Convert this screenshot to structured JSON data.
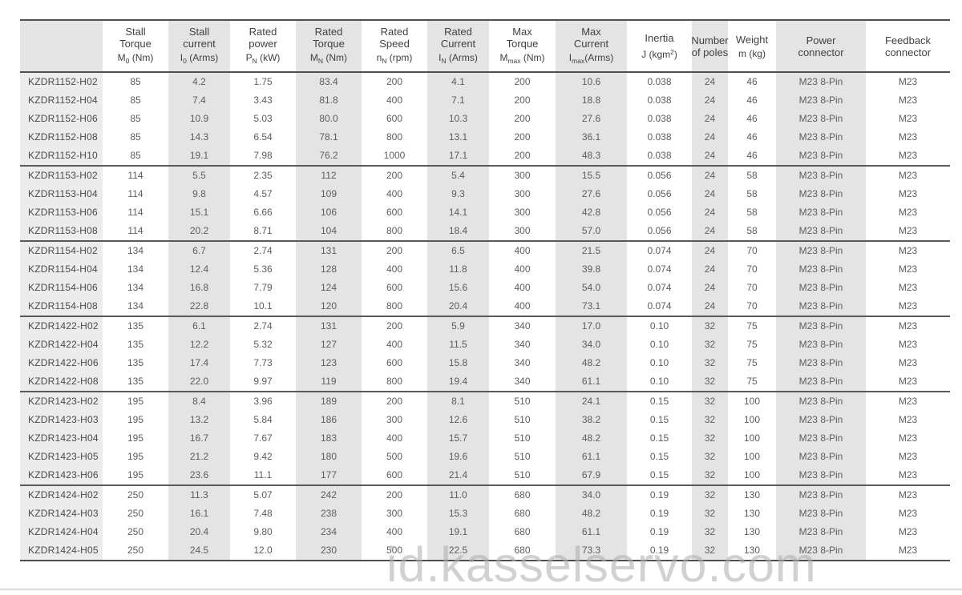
{
  "colors": {
    "page_bg": "#ffffff",
    "stripe": "#e4e4e4",
    "model_col": "#ececec",
    "border_dark": "#4f4f4f",
    "border_group": "#5a5a5a",
    "header_text": "#414141",
    "body_text": "#5d5d5d",
    "model_text": "#4a4a4a",
    "watermark": "#b0b0b0",
    "footer_line": "#dcdcdc"
  },
  "watermark": {
    "text": "id.kasselservo.com"
  },
  "table": {
    "columns": [
      {
        "key": "model",
        "label": "",
        "unit": null,
        "shaded": false,
        "header_shaded": true,
        "width": 103
      },
      {
        "key": "stall-torque",
        "label": "Stall\nTorque",
        "unit": [
          [
            "M",
            "n"
          ],
          [
            "0",
            "sub"
          ],
          [
            " (Nm)",
            "n"
          ]
        ],
        "shaded": false,
        "width": 82
      },
      {
        "key": "stall-current",
        "label": "Stall\ncurrent",
        "unit": [
          [
            "I",
            "n"
          ],
          [
            "0",
            "sub"
          ],
          [
            " (Arms)",
            "n"
          ]
        ],
        "shaded": true,
        "width": 77
      },
      {
        "key": "rated-power",
        "label": "Rated\npower",
        "unit": [
          [
            "P",
            "n"
          ],
          [
            "N",
            "sub"
          ],
          [
            " (kW)",
            "n"
          ]
        ],
        "shaded": false,
        "width": 82
      },
      {
        "key": "rated-torque",
        "label": "Rated\nTorque",
        "unit": [
          [
            "M",
            "n"
          ],
          [
            "N",
            "sub"
          ],
          [
            " (Nm)",
            "n"
          ]
        ],
        "shaded": true,
        "width": 82
      },
      {
        "key": "rated-speed",
        "label": "Rated\nSpeed",
        "unit": [
          [
            "n",
            "n"
          ],
          [
            "N",
            "sub"
          ],
          [
            " (rpm)",
            "n"
          ]
        ],
        "shaded": false,
        "width": 82
      },
      {
        "key": "rated-current",
        "label": "Rated\nCurrent",
        "unit": [
          [
            "I",
            "n"
          ],
          [
            "N",
            "sub"
          ],
          [
            " (Arms)",
            "n"
          ]
        ],
        "shaded": true,
        "width": 77
      },
      {
        "key": "max-torque",
        "label": "Max\nTorque",
        "unit": [
          [
            "M",
            "n"
          ],
          [
            "max",
            "sub"
          ],
          [
            " (Nm)",
            "n"
          ]
        ],
        "shaded": false,
        "width": 83
      },
      {
        "key": "max-current",
        "label": "Max\nCurrent",
        "unit": [
          [
            "I",
            "n"
          ],
          [
            "max",
            "sub"
          ],
          [
            "(Arms)",
            "n"
          ]
        ],
        "shaded": true,
        "width": 89
      },
      {
        "key": "inertia",
        "label": "Inertia",
        "unit": [
          [
            "J (kgm",
            "n"
          ],
          [
            "2",
            "sup"
          ],
          [
            ")",
            "n"
          ]
        ],
        "shaded": false,
        "width": 81
      },
      {
        "key": "poles",
        "label": "Number\nof poles",
        "unit": null,
        "shaded": true,
        "width": 45
      },
      {
        "key": "weight",
        "label": "Weight",
        "unit": [
          [
            "m (kg)",
            "n"
          ]
        ],
        "shaded": false,
        "width": 60
      },
      {
        "key": "power-connector",
        "label": "Power\nconnector",
        "unit": null,
        "shaded": true,
        "width": 112
      },
      {
        "key": "feedback-connector",
        "label": "Feedback\nconnector",
        "unit": null,
        "shaded": false,
        "width": 105
      }
    ],
    "groups": [
      {
        "rows": [
          [
            "KZDR1152-H02",
            "85",
            "4.2",
            "1.75",
            "83.4",
            "200",
            "4.1",
            "200",
            "10.6",
            "0.038",
            "24",
            "46",
            "M23 8-Pin",
            "M23"
          ],
          [
            "KZDR1152-H04",
            "85",
            "7.4",
            "3.43",
            "81.8",
            "400",
            "7.1",
            "200",
            "18.8",
            "0.038",
            "24",
            "46",
            "M23 8-Pin",
            "M23"
          ],
          [
            "KZDR1152-H06",
            "85",
            "10.9",
            "5.03",
            "80.0",
            "600",
            "10.3",
            "200",
            "27.6",
            "0.038",
            "24",
            "46",
            "M23 8-Pin",
            "M23"
          ],
          [
            "KZDR1152-H08",
            "85",
            "14.3",
            "6.54",
            "78.1",
            "800",
            "13.1",
            "200",
            "36.1",
            "0.038",
            "24",
            "46",
            "M23 8-Pin",
            "M23"
          ],
          [
            "KZDR1152-H10",
            "85",
            "19.1",
            "7.98",
            "76.2",
            "1000",
            "17.1",
            "200",
            "48.3",
            "0.038",
            "24",
            "46",
            "M23 8-Pin",
            "M23"
          ]
        ]
      },
      {
        "rows": [
          [
            "KZDR1153-H02",
            "114",
            "5.5",
            "2.35",
            "112",
            "200",
            "5.4",
            "300",
            "15.5",
            "0.056",
            "24",
            "58",
            "M23 8-Pin",
            "M23"
          ],
          [
            "KZDR1153-H04",
            "114",
            "9.8",
            "4.57",
            "109",
            "400",
            "9.3",
            "300",
            "27.6",
            "0.056",
            "24",
            "58",
            "M23 8-Pin",
            "M23"
          ],
          [
            "KZDR1153-H06",
            "114",
            "15.1",
            "6.66",
            "106",
            "600",
            "14.1",
            "300",
            "42.8",
            "0.056",
            "24",
            "58",
            "M23 8-Pin",
            "M23"
          ],
          [
            "KZDR1153-H08",
            "114",
            "20.2",
            "8.71",
            "104",
            "800",
            "18.4",
            "300",
            "57.0",
            "0.056",
            "24",
            "58",
            "M23 8-Pin",
            "M23"
          ]
        ]
      },
      {
        "rows": [
          [
            "KZDR1154-H02",
            "134",
            "6.7",
            "2.74",
            "131",
            "200",
            "6.5",
            "400",
            "21.5",
            "0.074",
            "24",
            "70",
            "M23 8-Pin",
            "M23"
          ],
          [
            "KZDR1154-H04",
            "134",
            "12.4",
            "5.36",
            "128",
            "400",
            "11.8",
            "400",
            "39.8",
            "0.074",
            "24",
            "70",
            "M23 8-Pin",
            "M23"
          ],
          [
            "KZDR1154-H06",
            "134",
            "16.8",
            "7.79",
            "124",
            "600",
            "15.6",
            "400",
            "54.0",
            "0.074",
            "24",
            "70",
            "M23 8-Pin",
            "M23"
          ],
          [
            "KZDR1154-H08",
            "134",
            "22.8",
            "10.1",
            "120",
            "800",
            "20.4",
            "400",
            "73.1",
            "0.074",
            "24",
            "70",
            "M23 8-Pin",
            "M23"
          ]
        ]
      },
      {
        "rows": [
          [
            "KZDR1422-H02",
            "135",
            "6.1",
            "2.74",
            "131",
            "200",
            "5.9",
            "340",
            "17.0",
            "0.10",
            "32",
            "75",
            "M23 8-Pin",
            "M23"
          ],
          [
            "KZDR1422-H04",
            "135",
            "12.2",
            "5.32",
            "127",
            "400",
            "11.5",
            "340",
            "34.0",
            "0.10",
            "32",
            "75",
            "M23 8-Pin",
            "M23"
          ],
          [
            "KZDR1422-H06",
            "135",
            "17.4",
            "7.73",
            "123",
            "600",
            "15.8",
            "340",
            "48.2",
            "0.10",
            "32",
            "75",
            "M23 8-Pin",
            "M23"
          ],
          [
            "KZDR1422-H08",
            "135",
            "22.0",
            "9.97",
            "119",
            "800",
            "19.4",
            "340",
            "61.1",
            "0.10",
            "32",
            "75",
            "M23 8-Pin",
            "M23"
          ]
        ]
      },
      {
        "rows": [
          [
            "KZDR1423-H02",
            "195",
            "8.4",
            "3.96",
            "189",
            "200",
            "8.1",
            "510",
            "24.1",
            "0.15",
            "32",
            "100",
            "M23 8-Pin",
            "M23"
          ],
          [
            "KZDR1423-H03",
            "195",
            "13.2",
            "5.84",
            "186",
            "300",
            "12.6",
            "510",
            "38.2",
            "0.15",
            "32",
            "100",
            "M23 8-Pin",
            "M23"
          ],
          [
            "KZDR1423-H04",
            "195",
            "16.7",
            "7.67",
            "183",
            "400",
            "15.7",
            "510",
            "48.2",
            "0.15",
            "32",
            "100",
            "M23 8-Pin",
            "M23"
          ],
          [
            "KZDR1423-H05",
            "195",
            "21.2",
            "9.42",
            "180",
            "500",
            "19.6",
            "510",
            "61.1",
            "0.15",
            "32",
            "100",
            "M23 8-Pin",
            "M23"
          ],
          [
            "KZDR1423-H06",
            "195",
            "23.6",
            "11.1",
            "177",
            "600",
            "21.4",
            "510",
            "67.9",
            "0.15",
            "32",
            "100",
            "M23 8-Pin",
            "M23"
          ]
        ]
      },
      {
        "rows": [
          [
            "KZDR1424-H02",
            "250",
            "11.3",
            "5.07",
            "242",
            "200",
            "11.0",
            "680",
            "34.0",
            "0.19",
            "32",
            "130",
            "M23 8-Pin",
            "M23"
          ],
          [
            "KZDR1424-H03",
            "250",
            "16.1",
            "7.48",
            "238",
            "300",
            "15.3",
            "680",
            "48.2",
            "0.19",
            "32",
            "130",
            "M23 8-Pin",
            "M23"
          ],
          [
            "KZDR1424-H04",
            "250",
            "20.4",
            "9.80",
            "234",
            "400",
            "19.1",
            "680",
            "61.1",
            "0.19",
            "32",
            "130",
            "M23 8-Pin",
            "M23"
          ],
          [
            "KZDR1424-H05",
            "250",
            "24.5",
            "12.0",
            "230",
            "500",
            "22.5",
            "680",
            "73.3",
            "0.19",
            "32",
            "130",
            "M23 8-Pin",
            "M23"
          ]
        ]
      }
    ]
  }
}
